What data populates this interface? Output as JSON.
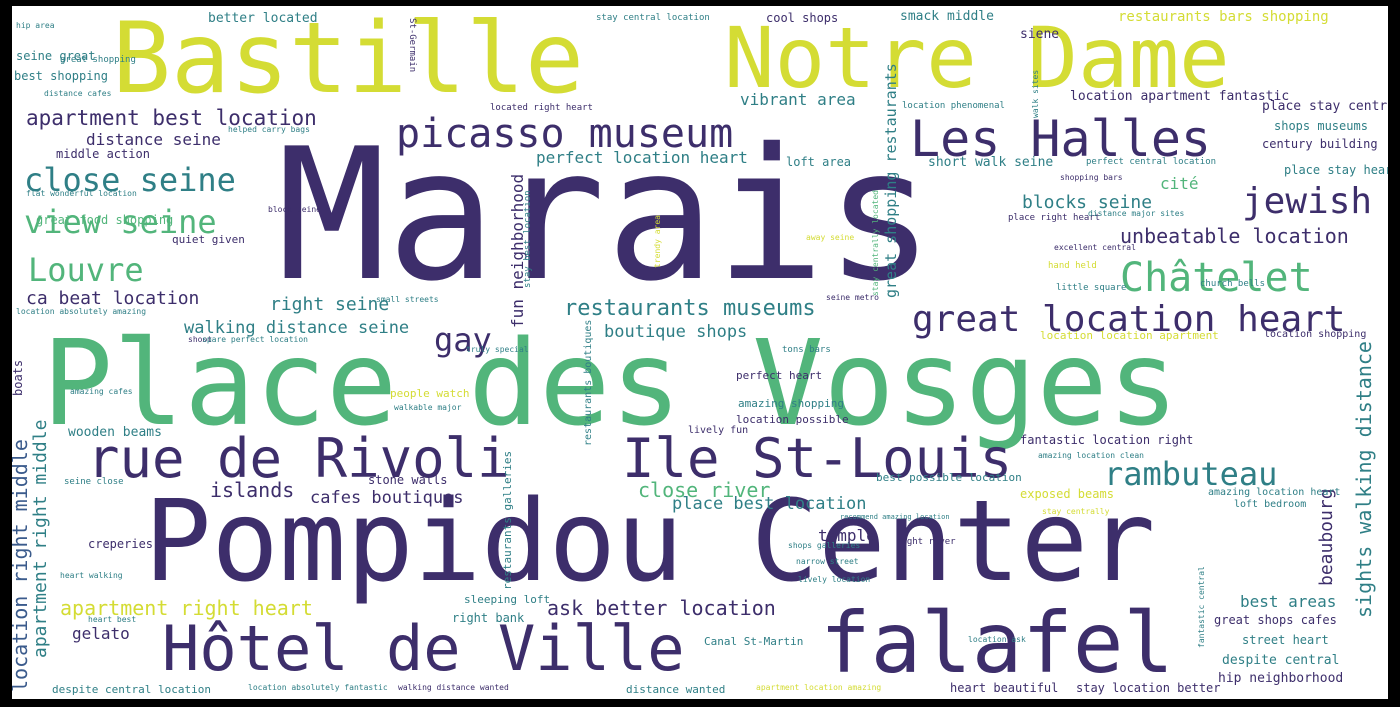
{
  "palette": {
    "dark": "#3d2e6b",
    "green": "#52b57b",
    "yellow": "#d4dc34",
    "teal": "#2f7f86",
    "blue": "#3b5b8c"
  },
  "words": [
    {
      "text": "Marais",
      "c": "dark"
    },
    {
      "text": "Place des Vosges",
      "c": "green"
    },
    {
      "text": "Pompidou Center",
      "c": "dark"
    },
    {
      "text": "Bastille",
      "c": "yellow"
    },
    {
      "text": "Notre Dame",
      "c": "yellow"
    },
    {
      "text": "falafel",
      "c": "dark"
    },
    {
      "text": "Hôtel de Ville",
      "c": "dark"
    },
    {
      "text": "rue de Rivoli",
      "c": "dark"
    },
    {
      "text": "Ile St-Louis",
      "c": "dark"
    },
    {
      "text": "Les Halles",
      "c": "dark"
    },
    {
      "text": "picasso museum",
      "c": "dark"
    },
    {
      "text": "Châtelet",
      "c": "green"
    },
    {
      "text": "great location heart",
      "c": "dark"
    },
    {
      "text": "jewish",
      "c": "dark"
    },
    {
      "text": "close seine",
      "c": "teal"
    },
    {
      "text": "view seine",
      "c": "green"
    },
    {
      "text": "Louvre",
      "c": "green"
    },
    {
      "text": "rambuteau",
      "c": "teal"
    },
    {
      "text": "gay",
      "c": "dark"
    },
    {
      "text": "apartment best location",
      "c": "dark"
    },
    {
      "text": "restaurants museums",
      "c": "teal"
    },
    {
      "text": "unbeatable location",
      "c": "dark"
    },
    {
      "text": "blocks seine",
      "c": "teal"
    },
    {
      "text": "islands",
      "c": "dark"
    },
    {
      "text": "close river",
      "c": "green"
    },
    {
      "text": "apartment right heart",
      "c": "yellow"
    },
    {
      "text": "ask better location",
      "c": "dark"
    },
    {
      "text": "location right middle",
      "c": "blue"
    },
    {
      "text": "apartment right middle",
      "c": "teal"
    },
    {
      "text": "sights walking distance",
      "c": "teal"
    },
    {
      "text": "beaubourg",
      "c": "dark"
    },
    {
      "text": "ca beat location",
      "c": "dark"
    },
    {
      "text": "right seine",
      "c": "teal"
    },
    {
      "text": "walking distance seine",
      "c": "teal"
    },
    {
      "text": "boutique shops",
      "c": "teal"
    },
    {
      "text": "cafes boutiques",
      "c": "dark"
    },
    {
      "text": "place best location",
      "c": "teal"
    },
    {
      "text": "perfect location heart",
      "c": "teal"
    },
    {
      "text": "vibrant area",
      "c": "teal"
    },
    {
      "text": "distance seine",
      "c": "dark"
    },
    {
      "text": "cité",
      "c": "green"
    },
    {
      "text": "fun neighborhood",
      "c": "dark"
    },
    {
      "text": "great shopping restaurants",
      "c": "teal"
    },
    {
      "text": "gelato",
      "c": "dark"
    },
    {
      "text": "temple",
      "c": "dark"
    },
    {
      "text": "best areas",
      "c": "teal"
    },
    {
      "text": "restaurants bars shopping",
      "c": "yellow"
    },
    {
      "text": "location apartment fantastic",
      "c": "dark"
    },
    {
      "text": "place stay central",
      "c": "dark"
    },
    {
      "text": "shops museums",
      "c": "teal"
    },
    {
      "text": "century building",
      "c": "dark"
    },
    {
      "text": "place stay heart",
      "c": "teal"
    },
    {
      "text": "smack middle",
      "c": "teal"
    },
    {
      "text": "cool shops",
      "c": "dark"
    },
    {
      "text": "siene",
      "c": "dark"
    },
    {
      "text": "better located",
      "c": "teal"
    },
    {
      "text": "seine great",
      "c": "teal"
    },
    {
      "text": "best shopping",
      "c": "teal"
    },
    {
      "text": "middle action",
      "c": "dark"
    },
    {
      "text": "short walk seine",
      "c": "teal"
    },
    {
      "text": "loft area",
      "c": "teal"
    },
    {
      "text": "great food shopping",
      "c": "green"
    },
    {
      "text": "quiet given",
      "c": "dark"
    },
    {
      "text": "wooden beams",
      "c": "teal"
    },
    {
      "text": "stone walls",
      "c": "dark"
    },
    {
      "text": "creperies",
      "c": "dark"
    },
    {
      "text": "right bank",
      "c": "teal"
    },
    {
      "text": "street heart",
      "c": "teal"
    },
    {
      "text": "despite central",
      "c": "teal"
    },
    {
      "text": "hip neighborhood",
      "c": "dark"
    },
    {
      "text": "great shops cafes",
      "c": "dark"
    },
    {
      "text": "exposed beams",
      "c": "yellow"
    },
    {
      "text": "fantastic location right",
      "c": "dark"
    },
    {
      "text": "heart beautiful",
      "c": "dark"
    },
    {
      "text": "stay location better",
      "c": "dark"
    },
    {
      "text": "distance wanted",
      "c": "teal"
    },
    {
      "text": "despite central location",
      "c": "teal"
    },
    {
      "text": "location location apartment",
      "c": "yellow"
    },
    {
      "text": "location shopping",
      "c": "dark"
    },
    {
      "text": "perfect heart",
      "c": "dark"
    },
    {
      "text": "amazing shopping",
      "c": "teal"
    },
    {
      "text": "location possible",
      "c": "dark"
    },
    {
      "text": "lively fun",
      "c": "dark"
    },
    {
      "text": "people watch",
      "c": "yellow"
    },
    {
      "text": "boats",
      "c": "dark"
    },
    {
      "text": "best possible location",
      "c": "teal"
    },
    {
      "text": "amazing location heart",
      "c": "teal"
    },
    {
      "text": "loft bedroom",
      "c": "teal"
    },
    {
      "text": "sleeping loft",
      "c": "teal"
    },
    {
      "text": "Canal St-Martin",
      "c": "teal"
    },
    {
      "text": "restaurants galleries",
      "c": "teal"
    },
    {
      "text": "restaurants boutiques",
      "c": "teal"
    },
    {
      "text": "St-Germain",
      "c": "dark"
    },
    {
      "text": "stay central location",
      "c": "teal"
    },
    {
      "text": "location phenomenal",
      "c": "teal"
    },
    {
      "text": "perfect central location",
      "c": "teal"
    },
    {
      "text": "shopping bars",
      "c": "dark"
    },
    {
      "text": "place right heart",
      "c": "dark"
    },
    {
      "text": "distance major sites",
      "c": "teal"
    },
    {
      "text": "excellent central",
      "c": "dark"
    },
    {
      "text": "hand held",
      "c": "yellow"
    },
    {
      "text": "little square",
      "c": "teal"
    },
    {
      "text": "church bells",
      "c": "teal"
    },
    {
      "text": "tons bars",
      "c": "teal"
    },
    {
      "text": "seine metro",
      "c": "dark"
    },
    {
      "text": "shoot",
      "c": "dark"
    },
    {
      "text": "seine close",
      "c": "teal"
    },
    {
      "text": "heart walking",
      "c": "teal"
    },
    {
      "text": "heart best",
      "c": "teal"
    },
    {
      "text": "hip area",
      "c": "teal"
    },
    {
      "text": "distance cafes",
      "c": "teal"
    },
    {
      "text": "helped carry bags",
      "c": "teal"
    },
    {
      "text": "flat wonderful location",
      "c": "teal"
    },
    {
      "text": "block seine",
      "c": "dark"
    },
    {
      "text": "stay centrally located",
      "c": "green"
    },
    {
      "text": "right river",
      "c": "dark"
    },
    {
      "text": "lively location",
      "c": "teal"
    },
    {
      "text": "shops galleries",
      "c": "teal"
    },
    {
      "text": "narrow street",
      "c": "teal"
    },
    {
      "text": "location ask",
      "c": "teal"
    },
    {
      "text": "walking distance wanted",
      "c": "dark"
    },
    {
      "text": "location absolutely fantastic",
      "c": "teal"
    },
    {
      "text": "apartment location amazing",
      "c": "yellow"
    },
    {
      "text": "stay centrally",
      "c": "yellow"
    },
    {
      "text": "amazing location clean",
      "c": "teal"
    },
    {
      "text": "recommend amazing location",
      "c": "teal"
    },
    {
      "text": "walk sites",
      "c": "teal"
    },
    {
      "text": "located right heart",
      "c": "dark"
    },
    {
      "text": "small streets",
      "c": "teal"
    },
    {
      "text": "trendy area",
      "c": "yellow"
    },
    {
      "text": "away seine",
      "c": "yellow"
    },
    {
      "text": "spare perfect location",
      "c": "teal"
    },
    {
      "text": "truly special",
      "c": "teal"
    },
    {
      "text": "walkable major",
      "c": "teal"
    },
    {
      "text": "amazing cafes",
      "c": "teal"
    },
    {
      "text": "location absolutely amazing",
      "c": "teal"
    },
    {
      "text": "stay best location",
      "c": "teal"
    },
    {
      "text": "fantastic central",
      "c": "teal"
    },
    {
      "text": "great shopping",
      "c": "teal"
    }
  ]
}
